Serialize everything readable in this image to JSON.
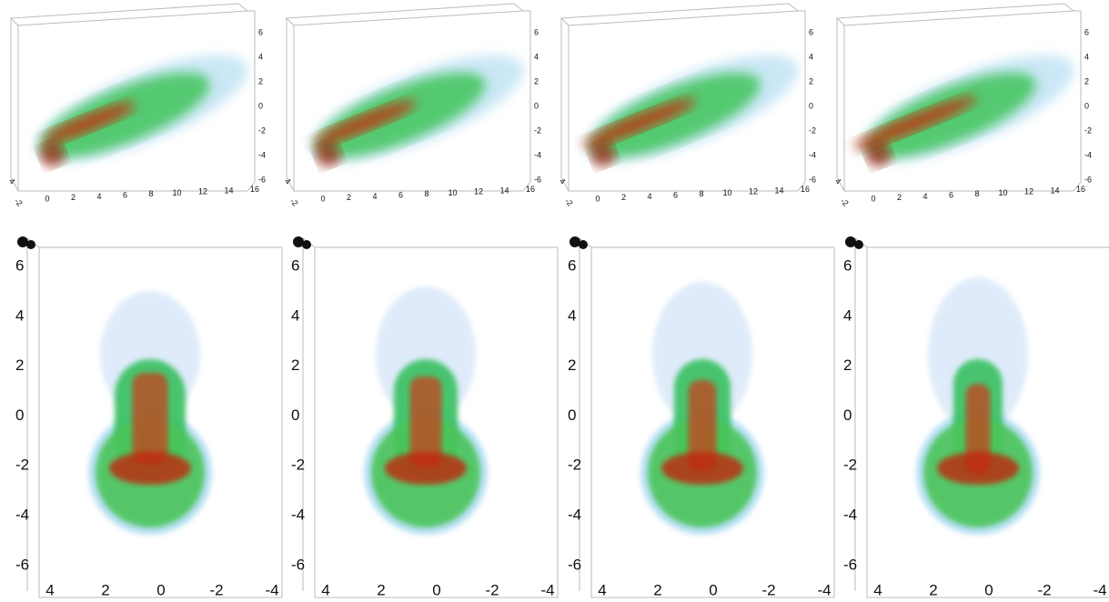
{
  "top_panels": [
    {
      "x_ticks": [
        "0",
        "2",
        "4",
        "6",
        "8",
        "10",
        "12",
        "14",
        "16"
      ],
      "y_ticks": [
        "6",
        "4",
        "2",
        "0",
        "-2",
        "-4",
        "-6"
      ],
      "z_ticks": [
        "4",
        "-2"
      ]
    },
    {
      "x_ticks": [
        "0",
        "2",
        "4",
        "6",
        "8",
        "10",
        "12",
        "14",
        "16"
      ],
      "y_ticks": [
        "6",
        "4",
        "2",
        "0",
        "-2",
        "-4",
        "-6"
      ],
      "z_ticks": [
        "4",
        "-2"
      ]
    },
    {
      "x_ticks": [
        "0",
        "2",
        "4",
        "6",
        "8",
        "10",
        "12",
        "14",
        "16"
      ],
      "y_ticks": [
        "6",
        "4",
        "2",
        "0",
        "-2",
        "-4",
        "-6"
      ],
      "z_ticks": [
        "4",
        "-2"
      ]
    },
    {
      "x_ticks": [
        "0",
        "2",
        "4",
        "6",
        "8",
        "10",
        "12",
        "14",
        "16"
      ],
      "y_ticks": [
        "6",
        "4",
        "2",
        "0",
        "-2",
        "-4",
        "-6"
      ],
      "z_ticks": [
        "4",
        "-2"
      ]
    }
  ],
  "bottom_panels": [
    {
      "y_ticks": [
        "6",
        "4",
        "2",
        "0",
        "-2",
        "-4",
        "-6"
      ],
      "x_ticks": [
        "4",
        "2",
        "0",
        "-2",
        "-4"
      ]
    },
    {
      "y_ticks": [
        "6",
        "4",
        "2",
        "0",
        "-2",
        "-4",
        "-6"
      ],
      "x_ticks": [
        "4",
        "2",
        "0",
        "-2",
        "-4"
      ]
    },
    {
      "y_ticks": [
        "6",
        "4",
        "2",
        "0",
        "-2",
        "-4",
        "-6"
      ],
      "x_ticks": [
        "4",
        "2",
        "0",
        "-2",
        "-4"
      ]
    },
    {
      "y_ticks": [
        "6",
        "4",
        "2",
        "0",
        "-2",
        "-4",
        "-6"
      ],
      "x_ticks": [
        "4",
        "2",
        "0",
        "-2",
        "-4"
      ]
    }
  ]
}
